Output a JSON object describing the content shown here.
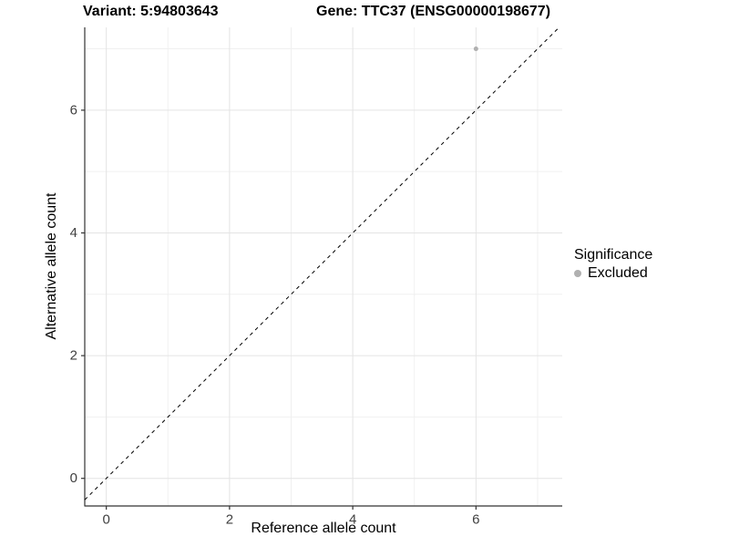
{
  "chart_data": {
    "type": "scatter",
    "title_variant": "Variant: 5:94803643",
    "title_gene": "Gene: TTC37 (ENSG00000198677)",
    "xlabel": "Reference allele count",
    "ylabel": "Alternative allele count",
    "xlim": [
      -0.35,
      7.4
    ],
    "ylim": [
      -0.45,
      7.35
    ],
    "x_ticks": [
      0,
      2,
      4,
      6
    ],
    "y_ticks": [
      0,
      2,
      4,
      6
    ],
    "x_minor_gridlines": [
      1,
      3,
      5,
      7
    ],
    "y_minor_gridlines": [
      1,
      3,
      5,
      7
    ],
    "grid": true,
    "legend_position": "right",
    "legend": {
      "title": "Significance",
      "items": [
        {
          "label": "Excluded",
          "color": "#b0b0b0"
        }
      ]
    },
    "points": [
      {
        "x": 6,
        "y": 7,
        "significance": "Excluded",
        "color": "#b0b0b0"
      }
    ],
    "identity_line": {
      "slope": 1,
      "intercept": 0,
      "linetype": "dashed",
      "color": "#000000"
    },
    "colors": {
      "major_gridline": "#e4e4e4",
      "minor_gridline": "#f0f0f0",
      "axis_line": "#333333",
      "tick_label": "#404040"
    }
  }
}
